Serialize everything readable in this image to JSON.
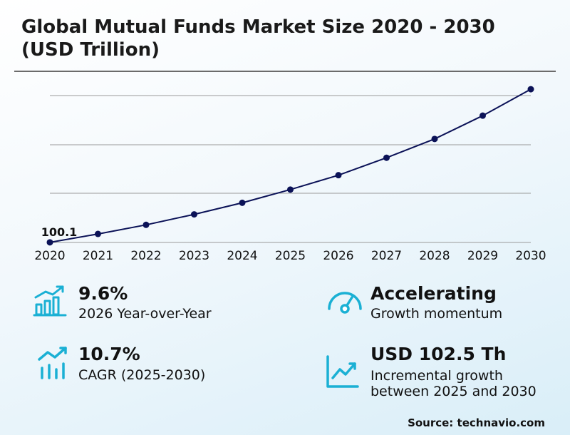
{
  "title": "Global Mutual Funds Market Size 2020 - 2030 (USD Trillion)",
  "chart_data": {
    "type": "line",
    "x": [
      "2020",
      "2021",
      "2022",
      "2023",
      "2024",
      "2025",
      "2026",
      "2027",
      "2028",
      "2029",
      "2030"
    ],
    "series": [
      {
        "values": [
          100.1,
          108.7,
          118.0,
          128.7,
          140.5,
          154.0,
          168.7,
          186.5,
          205.7,
          229.5,
          256.5
        ]
      }
    ],
    "data_labels": [
      {
        "index": 0,
        "text": "100.1"
      }
    ],
    "ylim": [
      100,
      250
    ],
    "yaxis_labels_shown": false,
    "grid": true,
    "colors": {
      "line": "#0b1257",
      "marker": "#0b1257",
      "grid": "#9a9a9a"
    }
  },
  "stats": [
    {
      "value": "9.6%",
      "label": "2026 Year-over-Year",
      "icon": "bar-growth-icon"
    },
    {
      "value": "Accelerating",
      "label": "Growth momentum",
      "icon": "gauge-icon"
    },
    {
      "value": "10.7%",
      "label": "CAGR (2025-2030)",
      "icon": "trend-bars-icon"
    },
    {
      "value": "USD 102.5 Th",
      "label_line1": "Incremental growth",
      "label_line2": "between 2025 and 2030",
      "icon": "trend-chart-icon"
    }
  ],
  "source": "Source: technavio.com",
  "colors": {
    "accent": "#1ab0d4"
  }
}
